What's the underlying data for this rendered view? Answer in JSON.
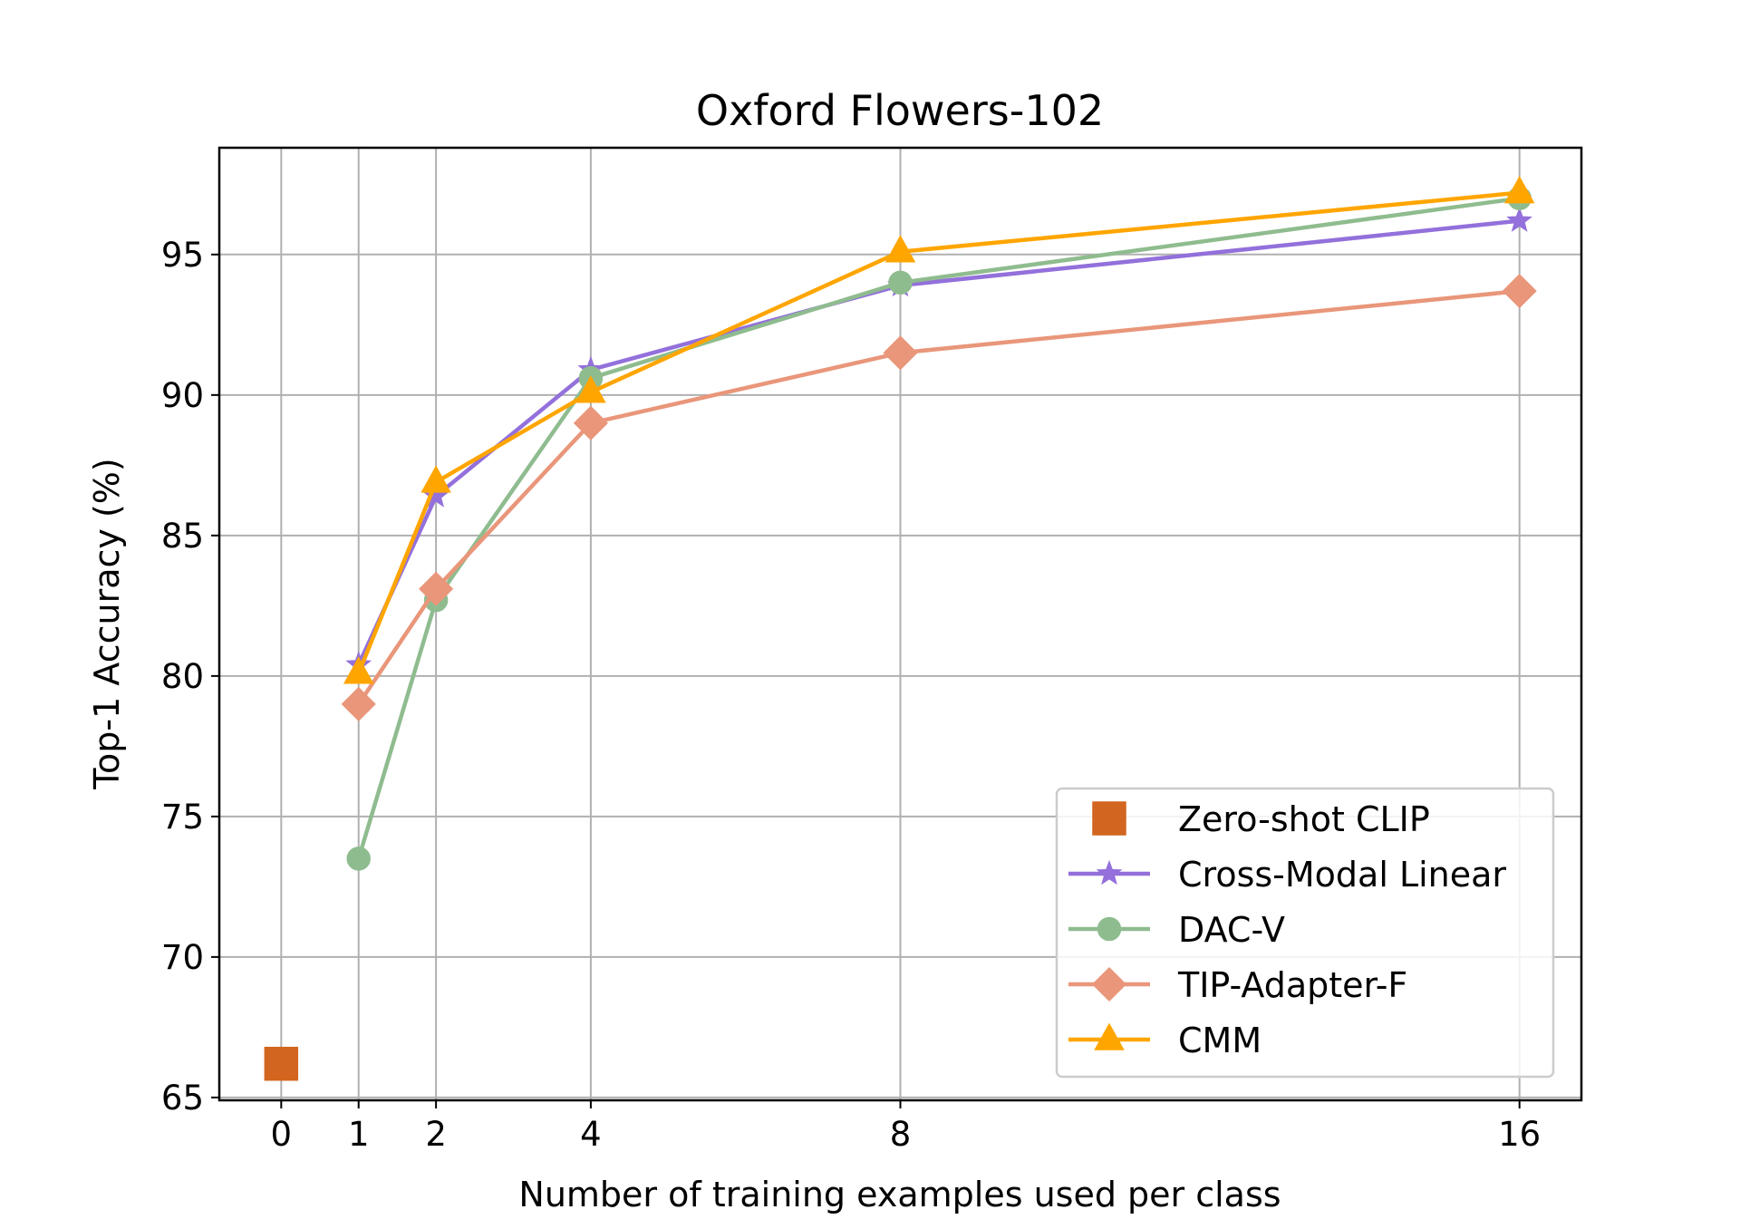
{
  "chart_data": {
    "type": "line",
    "title": "Oxford Flowers-102",
    "xlabel": "Number of training examples used per class",
    "ylabel": "Top-1 Accuracy (%)",
    "x_ticks": [
      0,
      1,
      2,
      4,
      8,
      16
    ],
    "y_ticks": [
      65,
      70,
      75,
      80,
      85,
      90,
      95
    ],
    "xlim": [
      -0.8,
      16.8
    ],
    "ylim": [
      64.9,
      98.8
    ],
    "grid": true,
    "legend_position": "lower right",
    "series": [
      {
        "name": "Zero-shot CLIP",
        "color": "#d2651f",
        "marker": "square",
        "line": false,
        "x": [
          0
        ],
        "y": [
          66.2
        ]
      },
      {
        "name": "Cross-Modal Linear",
        "color": "#9370db",
        "marker": "star",
        "line": true,
        "x": [
          1,
          2,
          4,
          8,
          16
        ],
        "y": [
          80.4,
          86.4,
          90.9,
          93.9,
          96.2
        ]
      },
      {
        "name": "DAC-V",
        "color": "#8fbc8f",
        "marker": "circle",
        "line": true,
        "x": [
          1,
          2,
          4,
          8,
          16
        ],
        "y": [
          73.5,
          82.7,
          90.6,
          94.0,
          97.0
        ]
      },
      {
        "name": "TIP-Adapter-F",
        "color": "#e9967a",
        "marker": "diamond",
        "line": true,
        "x": [
          1,
          2,
          4,
          8,
          16
        ],
        "y": [
          79.0,
          83.1,
          89.0,
          91.5,
          93.7
        ]
      },
      {
        "name": "CMM",
        "color": "#ffa500",
        "marker": "triangle",
        "line": true,
        "x": [
          1,
          2,
          4,
          8,
          16
        ],
        "y": [
          80.1,
          86.9,
          90.1,
          95.1,
          97.2
        ]
      }
    ]
  }
}
